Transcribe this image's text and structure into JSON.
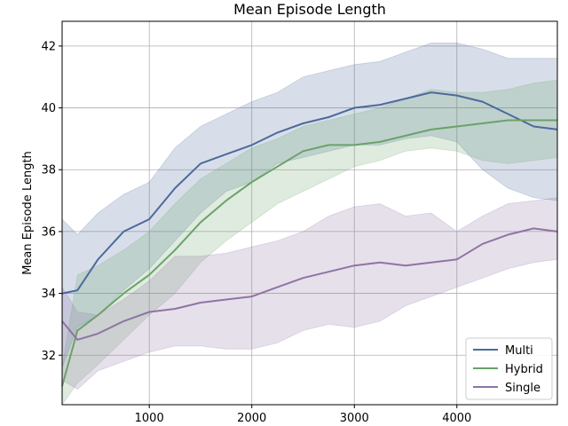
{
  "chart_data": {
    "type": "line",
    "title": "Mean Episode Length",
    "xlabel": "",
    "ylabel": "Mean Episode Length",
    "xlim": [
      150,
      4980
    ],
    "ylim": [
      30.4,
      42.8
    ],
    "xticks": [
      1000,
      2000,
      3000,
      4000
    ],
    "yticks": [
      32,
      34,
      36,
      38,
      40,
      42
    ],
    "grid": true,
    "legend_position": "lower-right",
    "shaded_band": true,
    "series": [
      {
        "name": "Multi",
        "color": "#4c6a9c",
        "x": [
          150,
          300,
          500,
          750,
          1000,
          1250,
          1500,
          1750,
          2000,
          2250,
          2500,
          2750,
          3000,
          3250,
          3500,
          3750,
          4000,
          4250,
          4500,
          4750,
          4980
        ],
        "values": [
          34.0,
          34.1,
          35.1,
          36.0,
          36.4,
          37.4,
          38.2,
          38.5,
          38.8,
          39.2,
          39.5,
          39.7,
          40.0,
          40.1,
          40.3,
          40.5,
          40.4,
          40.2,
          39.8,
          39.4,
          39.3
        ],
        "lower": [
          31.6,
          32.9,
          33.3,
          34.1,
          34.8,
          35.7,
          36.6,
          37.3,
          37.6,
          38.2,
          38.4,
          38.6,
          38.8,
          38.8,
          39.0,
          39.1,
          38.9,
          38.0,
          37.4,
          37.1,
          37.0
        ],
        "upper": [
          36.4,
          35.9,
          36.6,
          37.2,
          37.6,
          38.7,
          39.4,
          39.8,
          40.2,
          40.5,
          41.0,
          41.2,
          41.4,
          41.5,
          41.8,
          42.1,
          42.1,
          41.9,
          41.6,
          41.6,
          41.6
        ]
      },
      {
        "name": "Hybrid",
        "color": "#6aa26a",
        "x": [
          150,
          300,
          500,
          750,
          1000,
          1250,
          1500,
          1750,
          2000,
          2250,
          2500,
          2750,
          3000,
          3250,
          3500,
          3750,
          4000,
          4250,
          4500,
          4750,
          4980
        ],
        "values": [
          31.0,
          32.8,
          33.3,
          34.0,
          34.6,
          35.4,
          36.3,
          37.0,
          37.6,
          38.1,
          38.6,
          38.8,
          38.8,
          38.9,
          39.1,
          39.3,
          39.4,
          39.5,
          39.6,
          39.6,
          39.6
        ],
        "lower": [
          30.4,
          31.1,
          31.7,
          32.5,
          33.3,
          34.0,
          35.0,
          35.7,
          36.3,
          36.9,
          37.3,
          37.7,
          38.1,
          38.3,
          38.6,
          38.7,
          38.6,
          38.3,
          38.2,
          38.3,
          38.4
        ],
        "upper": [
          31.6,
          34.6,
          34.9,
          35.4,
          36.0,
          36.9,
          37.7,
          38.2,
          38.7,
          39.0,
          39.4,
          39.6,
          39.8,
          40.0,
          40.3,
          40.6,
          40.5,
          40.5,
          40.6,
          40.8,
          40.9
        ]
      },
      {
        "name": "Single",
        "color": "#8f74a3",
        "x": [
          150,
          300,
          500,
          750,
          1000,
          1250,
          1500,
          1750,
          2000,
          2250,
          2500,
          2750,
          3000,
          3250,
          3500,
          3750,
          4000,
          4250,
          4500,
          4750,
          4980
        ],
        "values": [
          33.1,
          32.5,
          32.7,
          33.1,
          33.4,
          33.5,
          33.7,
          33.8,
          33.9,
          34.2,
          34.5,
          34.7,
          34.9,
          35.0,
          34.9,
          35.0,
          35.1,
          35.6,
          35.9,
          36.1,
          36.0
        ],
        "lower": [
          31.2,
          30.9,
          31.5,
          31.8,
          32.1,
          32.3,
          32.3,
          32.2,
          32.2,
          32.4,
          32.8,
          33.0,
          32.9,
          33.1,
          33.6,
          33.9,
          34.2,
          34.5,
          34.8,
          35.0,
          35.1
        ],
        "upper": [
          34.2,
          33.4,
          33.3,
          33.8,
          34.4,
          35.2,
          35.2,
          35.3,
          35.5,
          35.7,
          36.0,
          36.5,
          36.8,
          36.9,
          36.5,
          36.6,
          36.0,
          36.5,
          36.9,
          37.0,
          37.1
        ]
      }
    ]
  }
}
